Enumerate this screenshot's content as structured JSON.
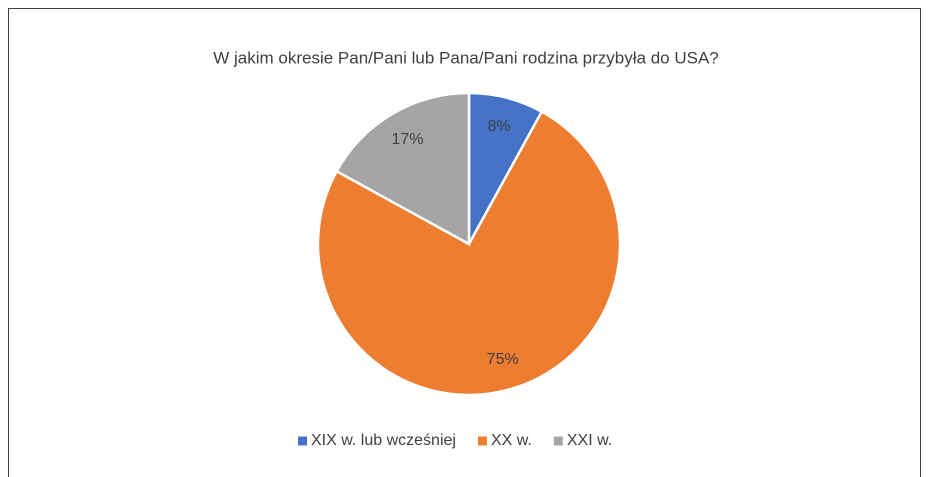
{
  "chart_data": {
    "type": "pie",
    "title": "W jakim okresie Pan/Pani lub Pana/Pani rodzina przybyła do USA?",
    "categories": [
      "XIX w. lub wcześniej",
      "XX w.",
      "XXI w."
    ],
    "values": [
      8,
      75,
      17
    ],
    "value_labels": [
      "8%",
      "75%",
      "17%"
    ],
    "colors": [
      "#4472c4",
      "#ed7d31",
      "#a5a5a5"
    ],
    "legend": "bottom"
  }
}
